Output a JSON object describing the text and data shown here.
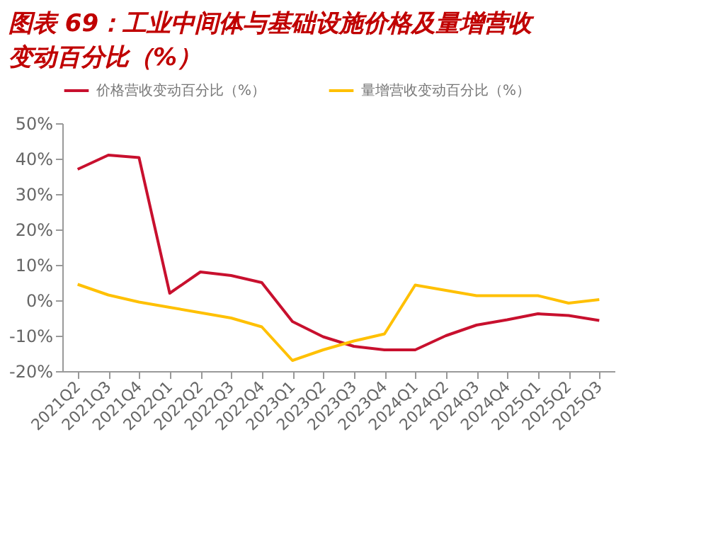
{
  "chart_data": {
    "type": "line",
    "title": "图表 69：工业中间体与基础设施价格及量增营收变动百分比（%）",
    "categories": [
      "2021Q2",
      "2021Q3",
      "2021Q4",
      "2022Q1",
      "2022Q2",
      "2022Q3",
      "2022Q4",
      "2023Q1",
      "2023Q2",
      "2023Q3",
      "2023Q4",
      "2024Q1",
      "2024Q2",
      "2024Q3",
      "2024Q4",
      "2025Q1",
      "2025Q2",
      "2025Q3"
    ],
    "series": [
      {
        "name": "价格营收变动百分比（%）",
        "color": "#c8102e",
        "values": [
          37,
          41,
          40.3,
          2,
          8,
          7,
          5,
          -6,
          -10.3,
          -13,
          -14,
          -14,
          -10,
          -7,
          -5.5,
          -3.8,
          -4.3,
          -5.7
        ]
      },
      {
        "name": "量增营收变动百分比（%）",
        "color": "#ffc000",
        "values": [
          4.5,
          1.5,
          -0.5,
          -2,
          -3.5,
          -5,
          -7.5,
          -17,
          -14,
          -11.5,
          -9.5,
          4.3,
          2.8,
          1.3,
          1.3,
          1.3,
          -0.8,
          0.2
        ]
      }
    ],
    "ylim": [
      -20,
      50
    ],
    "yticks": [
      {
        "value": -20,
        "label": "-20%"
      },
      {
        "value": -10,
        "label": "-10%"
      },
      {
        "value": 0,
        "label": "0%"
      },
      {
        "value": 10,
        "label": "10%"
      },
      {
        "value": 20,
        "label": "20%"
      },
      {
        "value": 30,
        "label": "30%"
      },
      {
        "value": 40,
        "label": "40%"
      },
      {
        "value": 50,
        "label": "50%"
      }
    ],
    "legend": "top",
    "grid": false,
    "marker": "none",
    "line_style": "solid"
  }
}
